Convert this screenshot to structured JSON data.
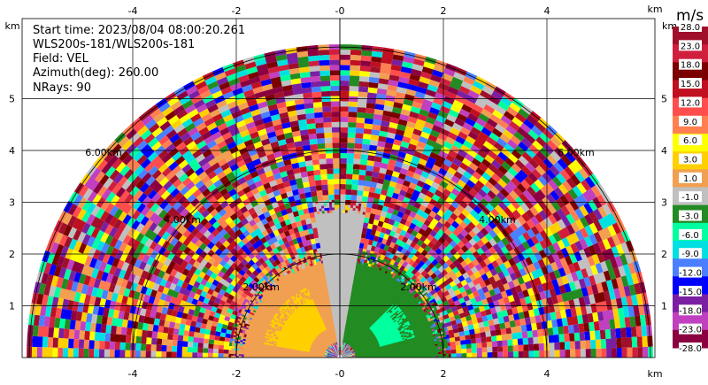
{
  "info": {
    "start_time": "Start time: 2023/08/04 08:00:20.261",
    "site": "WLS200s-181/WLS200s-181",
    "field": "Field: VEL",
    "azimuth": "Azimuth(deg): 260.00",
    "nrays": "NRays: 90"
  },
  "colorbar": {
    "title": "m/s",
    "labels": [
      "28.0",
      "23.0",
      "18.0",
      "15.0",
      "12.0",
      "9.0",
      "6.0",
      "3.0",
      "1.0",
      "-1.0",
      "-3.0",
      "-6.0",
      "-9.0",
      "-12.0",
      "-15.0",
      "-18.0",
      "-23.0",
      "-28.0"
    ],
    "colors": [
      "#a0102a",
      "#d01f3d",
      "#7b0000",
      "#c01020",
      "#ff4d4d",
      "#ff7f50",
      "#ffff00",
      "#ffd000",
      "#f0a050",
      "#c0c0c0",
      "#228b22",
      "#00ff9f",
      "#00e0e0",
      "#4a7fff",
      "#0000ff",
      "#7b1fa2",
      "#c040c0",
      "#8b0040"
    ]
  },
  "chart_data": {
    "type": "heatmap",
    "title": "",
    "xlabel": "km",
    "ylabel": "km",
    "xlim": [
      -6,
      6
    ],
    "ylim": [
      0,
      6
    ],
    "xticks": [
      -4,
      -2,
      0,
      2,
      4
    ],
    "xtick_labels": [
      "-4",
      "-2",
      "-0",
      "2",
      "4"
    ],
    "yticks": [
      1,
      2,
      3,
      4,
      5
    ],
    "yticks_labels": [
      "1",
      "2",
      "3",
      "4",
      "5"
    ],
    "range_rings_km": [
      2,
      4,
      6
    ],
    "range_ring_labels": [
      "2.00km",
      "4.00km",
      "6.00km"
    ],
    "max_range_km": 6.0,
    "grid": true,
    "regions": [
      {
        "velocity": 1.0,
        "from_azimuth_deg": 270,
        "to_azimuth_deg": 355,
        "from_km": 0.3,
        "to_km": 2.1,
        "color": "#f0a050"
      },
      {
        "velocity": 3.0,
        "from_azimuth_deg": 280,
        "to_azimuth_deg": 335,
        "from_km": 0.6,
        "to_km": 1.5,
        "color": "#ffd000"
      },
      {
        "velocity": -1.0,
        "from_azimuth_deg": 350,
        "to_azimuth_deg": 10,
        "from_km": 0.2,
        "to_km": 3.0,
        "color": "#c0c0c0"
      },
      {
        "velocity": -3.0,
        "from_azimuth_deg": 10,
        "to_azimuth_deg": 90,
        "from_km": 0.3,
        "to_km": 2.1,
        "color": "#228b22"
      },
      {
        "velocity": -6.0,
        "from_azimuth_deg": 45,
        "to_azimuth_deg": 75,
        "from_km": 0.8,
        "to_km": 1.5,
        "color": "#00ff9f"
      }
    ]
  }
}
